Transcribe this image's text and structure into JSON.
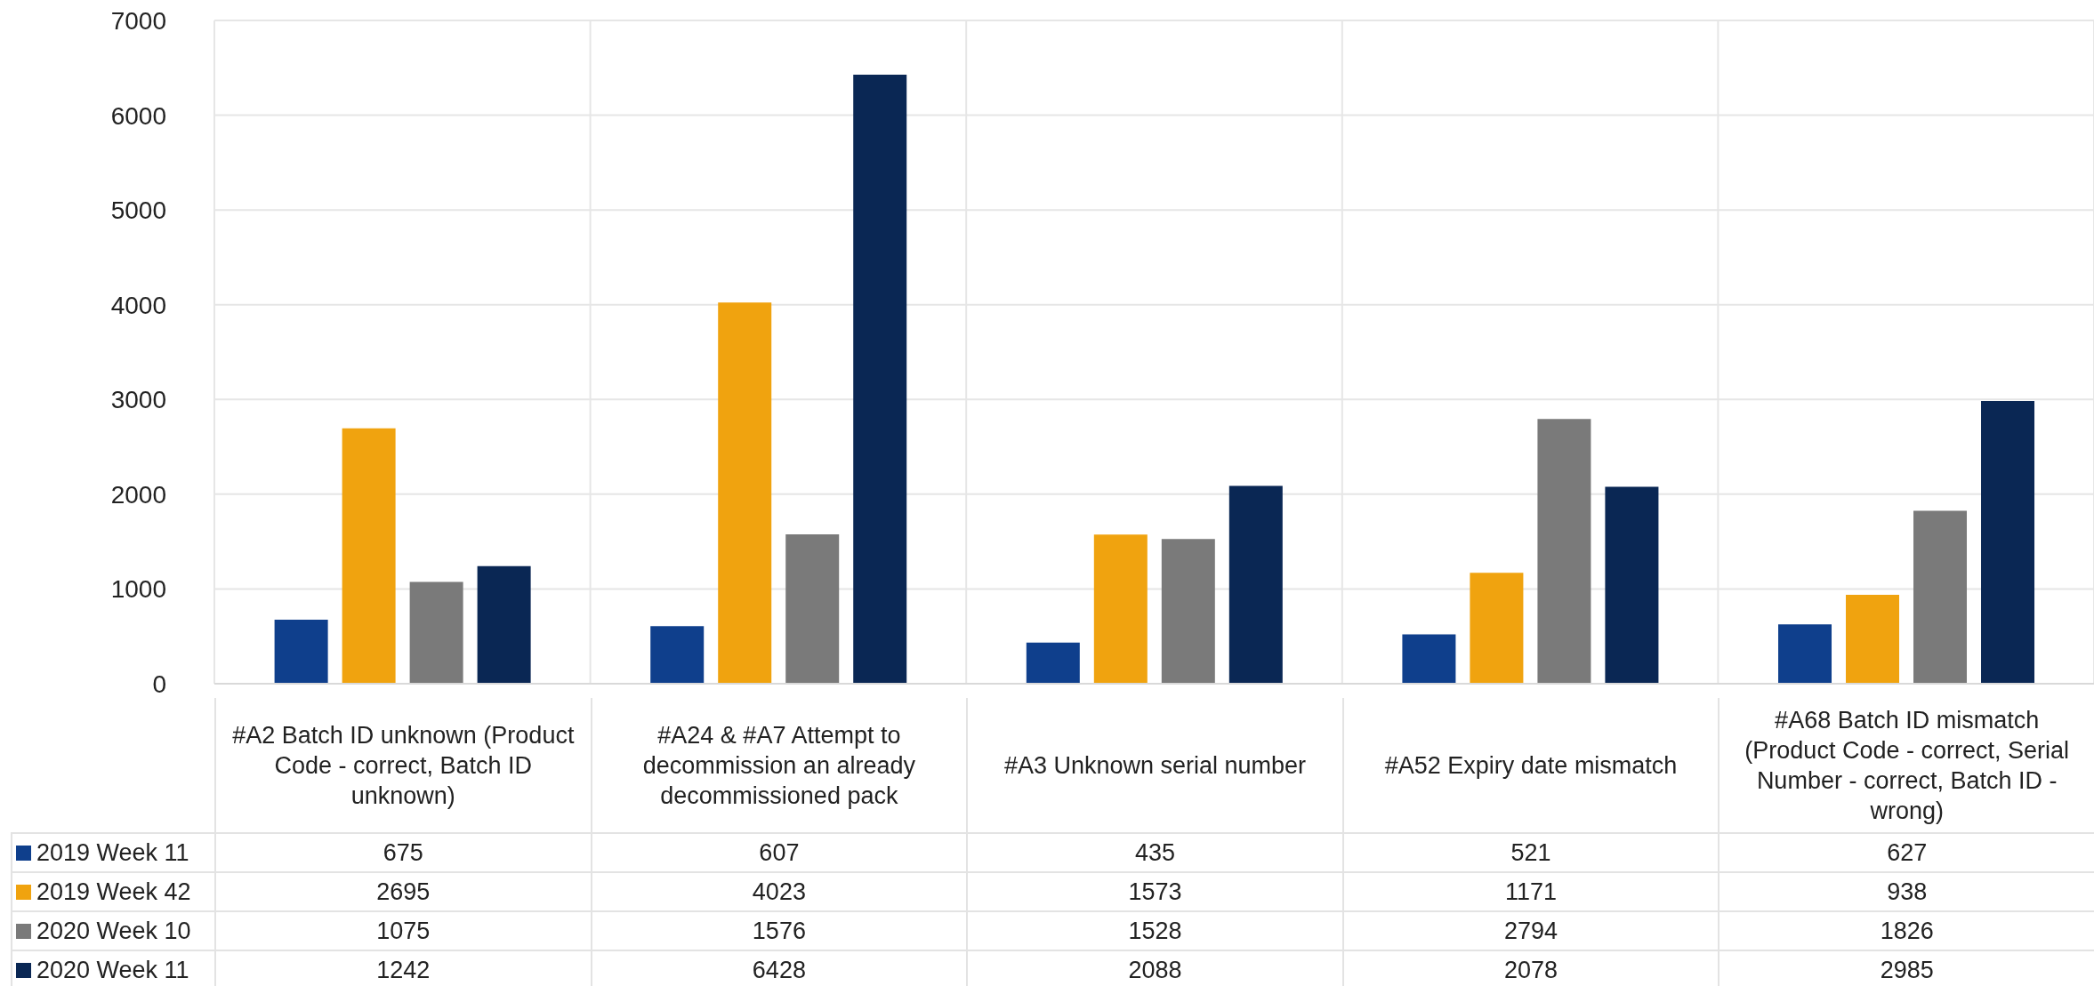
{
  "chart_data": {
    "type": "bar",
    "categories": [
      "#A2 Batch ID unknown (Product Code - correct, Batch ID unknown)",
      "#A24 & #A7 Attempt to decommission an already decommissioned pack",
      "#A3 Unknown serial number",
      "#A52 Expiry date mismatch",
      "#A68 Batch ID mismatch (Product Code - correct, Serial Number - correct, Batch ID - wrong)"
    ],
    "series": [
      {
        "name": "2019 Week 11",
        "color": "#0f3f8c",
        "values": [
          675,
          607,
          435,
          521,
          627
        ]
      },
      {
        "name": "2019 Week 42",
        "color": "#f0a30f",
        "values": [
          2695,
          4023,
          1573,
          1171,
          938
        ]
      },
      {
        "name": "2020 Week 10",
        "color": "#7a7a7a",
        "values": [
          1075,
          1576,
          1528,
          2794,
          1826
        ]
      },
      {
        "name": "2020 Week 11",
        "color": "#0a2754",
        "values": [
          1242,
          6428,
          2088,
          2078,
          2985
        ]
      }
    ],
    "ylim": [
      0,
      7000
    ],
    "yticks": [
      0,
      1000,
      2000,
      3000,
      4000,
      5000,
      6000,
      7000
    ],
    "grid": true,
    "legend": "bottom",
    "data_labels": true
  }
}
